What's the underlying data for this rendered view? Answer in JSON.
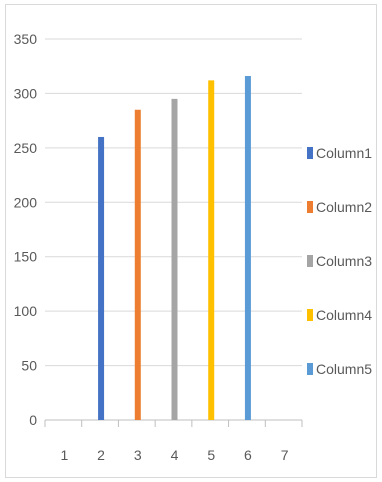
{
  "chart_data": {
    "type": "bar",
    "categories": [
      "1",
      "2",
      "3",
      "4",
      "5",
      "6",
      "7"
    ],
    "ylim": [
      0,
      350
    ],
    "y_ticks": [
      0,
      50,
      100,
      150,
      200,
      250,
      300,
      350
    ],
    "grid": true,
    "legend_position": "right",
    "series": [
      {
        "name": "Column1",
        "category": "2",
        "value": 260,
        "color": "#4472C4"
      },
      {
        "name": "Column2",
        "category": "3",
        "value": 285,
        "color": "#ED7D31"
      },
      {
        "name": "Column3",
        "category": "4",
        "value": 295,
        "color": "#A5A5A5"
      },
      {
        "name": "Column4",
        "category": "5",
        "value": 312,
        "color": "#FFC000"
      },
      {
        "name": "Column5",
        "category": "6",
        "value": 316,
        "color": "#5B9BD5"
      }
    ]
  }
}
